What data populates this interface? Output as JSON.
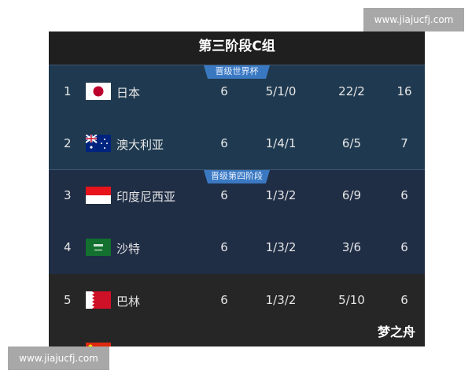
{
  "watermark": "www.jiajucfj.com",
  "title": "第三阶段C组",
  "sections": [
    {
      "label": "晋级世界杯",
      "color": "#1f3a50"
    },
    {
      "label": "晋级第四阶段",
      "color": "#1f2d45"
    }
  ],
  "rows": [
    {
      "rank": "1",
      "flag": "japan-flag",
      "name": "日本",
      "played": "6",
      "record": "5/1/0",
      "goals": "22/2",
      "points": "16"
    },
    {
      "rank": "2",
      "flag": "australia-flag",
      "name": "澳大利亚",
      "played": "6",
      "record": "1/4/1",
      "goals": "6/5",
      "points": "7"
    },
    {
      "rank": "3",
      "flag": "indonesia-flag",
      "name": "印度尼西亚",
      "played": "6",
      "record": "1/3/2",
      "goals": "6/9",
      "points": "6"
    },
    {
      "rank": "4",
      "flag": "saudi-arabia-flag",
      "name": "沙特",
      "played": "6",
      "record": "1/3/2",
      "goals": "3/6",
      "points": "6"
    },
    {
      "rank": "5",
      "flag": "bahrain-flag",
      "name": "巴林",
      "played": "6",
      "record": "1/3/2",
      "goals": "5/10",
      "points": "6"
    }
  ],
  "author": "梦之舟"
}
